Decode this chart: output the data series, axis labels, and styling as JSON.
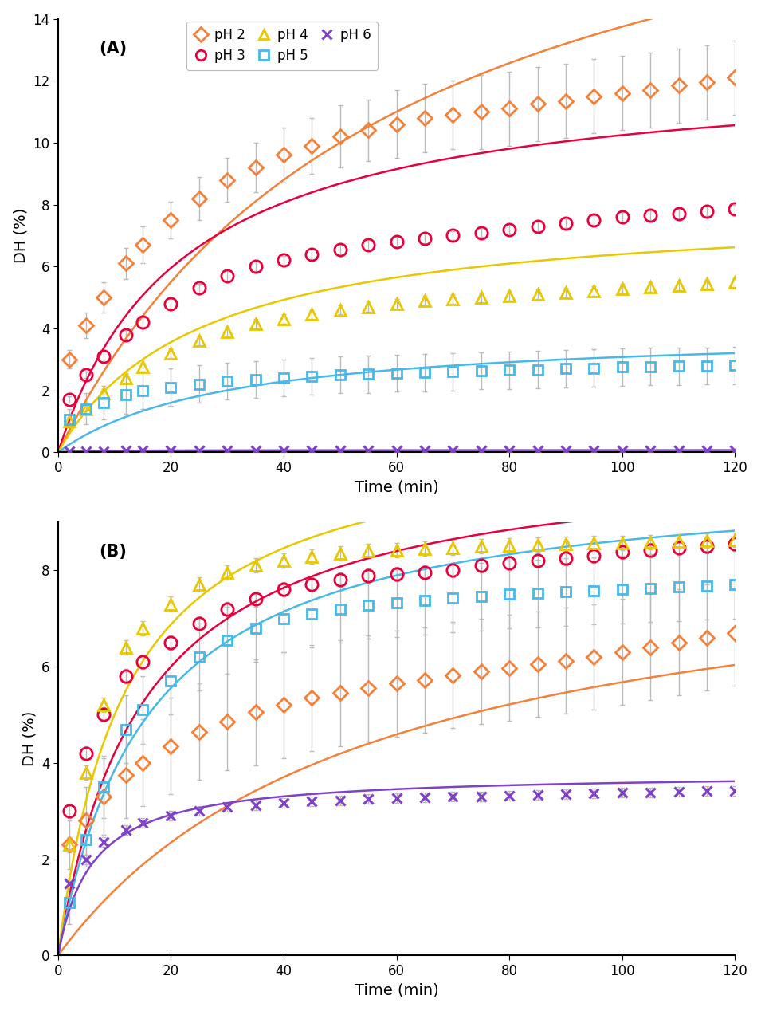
{
  "panel_A": {
    "label": "(A)",
    "ylim": [
      0,
      14
    ],
    "yticks": [
      0,
      2,
      4,
      6,
      8,
      10,
      12,
      14
    ],
    "series": [
      {
        "ph": "pH 2",
        "color": "#F4803A",
        "marker": "D",
        "markersize": 9,
        "fit_a": 22.0,
        "fit_b": 60.0,
        "data_x": [
          2,
          5,
          8,
          12,
          15,
          20,
          25,
          30,
          35,
          40,
          45,
          50,
          55,
          60,
          65,
          70,
          75,
          80,
          85,
          90,
          95,
          100,
          105,
          110,
          115,
          120
        ],
        "data_y": [
          3.0,
          4.1,
          5.0,
          6.1,
          6.7,
          7.5,
          8.2,
          8.8,
          9.2,
          9.6,
          9.9,
          10.2,
          10.4,
          10.6,
          10.8,
          10.9,
          11.0,
          11.1,
          11.25,
          11.35,
          11.5,
          11.6,
          11.7,
          11.85,
          11.95,
          12.1
        ],
        "err_y": [
          0.3,
          0.4,
          0.5,
          0.5,
          0.6,
          0.6,
          0.7,
          0.7,
          0.8,
          0.9,
          0.9,
          1.0,
          1.0,
          1.1,
          1.1,
          1.1,
          1.2,
          1.2,
          1.2,
          1.2,
          1.2,
          1.2,
          1.2,
          1.2,
          1.2,
          1.2
        ]
      },
      {
        "ph": "pH 3",
        "color": "#E8003C",
        "marker": "o",
        "markersize": 11,
        "fit_a": 12.5,
        "fit_b": 22.0,
        "data_x": [
          2,
          5,
          8,
          12,
          15,
          20,
          25,
          30,
          35,
          40,
          45,
          50,
          55,
          60,
          65,
          70,
          75,
          80,
          85,
          90,
          95,
          100,
          105,
          110,
          115,
          120
        ],
        "data_y": [
          1.7,
          2.5,
          3.1,
          3.8,
          4.2,
          4.8,
          5.3,
          5.7,
          6.0,
          6.2,
          6.4,
          6.55,
          6.7,
          6.8,
          6.9,
          7.0,
          7.1,
          7.2,
          7.3,
          7.4,
          7.5,
          7.6,
          7.65,
          7.7,
          7.78,
          7.85
        ],
        "err_y": [
          0.1,
          0.1,
          0.15,
          0.15,
          0.15,
          0.15,
          0.15,
          0.15,
          0.15,
          0.15,
          0.15,
          0.15,
          0.15,
          0.15,
          0.15,
          0.15,
          0.15,
          0.15,
          0.15,
          0.15,
          0.15,
          0.15,
          0.15,
          0.15,
          0.15,
          0.15
        ]
      },
      {
        "ph": "pH 4",
        "color": "#E8C800",
        "marker": "^",
        "markersize": 10,
        "fit_a": 8.0,
        "fit_b": 25.0,
        "data_x": [
          2,
          5,
          8,
          12,
          15,
          20,
          25,
          30,
          35,
          40,
          45,
          50,
          55,
          60,
          65,
          70,
          75,
          80,
          85,
          90,
          95,
          100,
          105,
          110,
          115,
          120
        ],
        "data_y": [
          1.0,
          1.4,
          1.9,
          2.4,
          2.75,
          3.2,
          3.6,
          3.9,
          4.15,
          4.3,
          4.45,
          4.6,
          4.7,
          4.8,
          4.9,
          4.95,
          5.0,
          5.05,
          5.1,
          5.15,
          5.2,
          5.28,
          5.33,
          5.38,
          5.43,
          5.48
        ],
        "err_y": [
          0.15,
          0.15,
          0.15,
          0.15,
          0.15,
          0.15,
          0.15,
          0.15,
          0.15,
          0.15,
          0.15,
          0.15,
          0.15,
          0.15,
          0.15,
          0.15,
          0.15,
          0.15,
          0.15,
          0.15,
          0.15,
          0.15,
          0.15,
          0.15,
          0.15,
          0.15
        ]
      },
      {
        "ph": "pH 5",
        "color": "#48B8E8",
        "marker": "s",
        "markersize": 9,
        "fit_a": 4.0,
        "fit_b": 30.0,
        "data_x": [
          2,
          5,
          8,
          12,
          15,
          20,
          25,
          30,
          35,
          40,
          45,
          50,
          55,
          60,
          65,
          70,
          75,
          80,
          85,
          90,
          95,
          100,
          105,
          110,
          115,
          120
        ],
        "data_y": [
          1.05,
          1.4,
          1.6,
          1.85,
          2.0,
          2.1,
          2.2,
          2.3,
          2.35,
          2.4,
          2.45,
          2.5,
          2.52,
          2.55,
          2.57,
          2.6,
          2.63,
          2.65,
          2.67,
          2.7,
          2.72,
          2.75,
          2.77,
          2.78,
          2.79,
          2.8
        ],
        "err_y": [
          0.35,
          0.5,
          0.55,
          0.6,
          0.6,
          0.6,
          0.6,
          0.6,
          0.6,
          0.6,
          0.6,
          0.6,
          0.6,
          0.6,
          0.6,
          0.6,
          0.6,
          0.6,
          0.6,
          0.6,
          0.6,
          0.6,
          0.6,
          0.6,
          0.6,
          0.6
        ]
      },
      {
        "ph": "pH 6",
        "color": "#8040C8",
        "marker": "x",
        "markersize": 9,
        "fit_a": 0.07,
        "fit_b": 5.0,
        "data_x": [
          2,
          5,
          8,
          12,
          15,
          20,
          25,
          30,
          35,
          40,
          45,
          50,
          55,
          60,
          65,
          70,
          75,
          80,
          85,
          90,
          95,
          100,
          105,
          110,
          115,
          120
        ],
        "data_y": [
          0.03,
          0.04,
          0.04,
          0.05,
          0.05,
          0.05,
          0.05,
          0.05,
          0.05,
          0.05,
          0.05,
          0.05,
          0.05,
          0.05,
          0.05,
          0.05,
          0.05,
          0.05,
          0.05,
          0.05,
          0.05,
          0.05,
          0.05,
          0.05,
          0.05,
          0.05
        ],
        "err_y": [
          0.005,
          0.005,
          0.005,
          0.005,
          0.005,
          0.005,
          0.005,
          0.005,
          0.005,
          0.005,
          0.005,
          0.005,
          0.005,
          0.005,
          0.005,
          0.005,
          0.005,
          0.005,
          0.005,
          0.005,
          0.005,
          0.005,
          0.005,
          0.005,
          0.005,
          0.005
        ]
      }
    ]
  },
  "panel_B": {
    "label": "(B)",
    "ylim": [
      0,
      9
    ],
    "yticks": [
      0,
      2,
      4,
      6,
      8
    ],
    "series": [
      {
        "ph": "pH 2",
        "color": "#F4803A",
        "marker": "D",
        "markersize": 9,
        "fit_a": 8.8,
        "fit_b": 55.0,
        "data_x": [
          2,
          5,
          8,
          12,
          15,
          20,
          25,
          30,
          35,
          40,
          45,
          50,
          55,
          60,
          65,
          70,
          75,
          80,
          85,
          90,
          95,
          100,
          105,
          110,
          115,
          120
        ],
        "data_y": [
          2.3,
          2.8,
          3.3,
          3.75,
          4.0,
          4.35,
          4.65,
          4.85,
          5.05,
          5.2,
          5.35,
          5.45,
          5.55,
          5.65,
          5.72,
          5.82,
          5.9,
          5.97,
          6.05,
          6.12,
          6.2,
          6.3,
          6.4,
          6.5,
          6.6,
          6.7
        ],
        "err_y": [
          0.5,
          0.7,
          0.8,
          0.9,
          0.9,
          1.0,
          1.0,
          1.0,
          1.1,
          1.1,
          1.1,
          1.1,
          1.1,
          1.1,
          1.1,
          1.1,
          1.1,
          1.1,
          1.1,
          1.1,
          1.1,
          1.1,
          1.1,
          1.1,
          1.1,
          1.1
        ]
      },
      {
        "ph": "pH 3",
        "color": "#E8003C",
        "marker": "o",
        "markersize": 11,
        "fit_a": 10.5,
        "fit_b": 15.0,
        "data_x": [
          2,
          5,
          8,
          12,
          15,
          20,
          25,
          30,
          35,
          40,
          45,
          50,
          55,
          60,
          65,
          70,
          75,
          80,
          85,
          90,
          95,
          100,
          105,
          110,
          115,
          120
        ],
        "data_y": [
          3.0,
          4.2,
          5.0,
          5.8,
          6.1,
          6.5,
          6.9,
          7.2,
          7.4,
          7.6,
          7.7,
          7.8,
          7.88,
          7.92,
          7.95,
          8.0,
          8.1,
          8.15,
          8.2,
          8.25,
          8.3,
          8.38,
          8.42,
          8.47,
          8.5,
          8.55
        ],
        "err_y": [
          0.15,
          0.15,
          0.15,
          0.15,
          0.15,
          0.15,
          0.15,
          0.15,
          0.15,
          0.15,
          0.15,
          0.15,
          0.15,
          0.15,
          0.15,
          0.15,
          0.15,
          0.15,
          0.15,
          0.15,
          0.15,
          0.15,
          0.15,
          0.15,
          0.15,
          0.15
        ]
      },
      {
        "ph": "pH 4",
        "color": "#E8C800",
        "marker": "^",
        "markersize": 10,
        "fit_a": 11.0,
        "fit_b": 12.0,
        "data_x": [
          2,
          5,
          8,
          12,
          15,
          20,
          25,
          30,
          35,
          40,
          45,
          50,
          55,
          60,
          65,
          70,
          75,
          80,
          85,
          90,
          95,
          100,
          105,
          110,
          115,
          120
        ],
        "data_y": [
          2.3,
          3.8,
          5.2,
          6.4,
          6.8,
          7.3,
          7.7,
          7.95,
          8.1,
          8.2,
          8.28,
          8.35,
          8.4,
          8.42,
          8.45,
          8.47,
          8.5,
          8.52,
          8.53,
          8.55,
          8.56,
          8.57,
          8.58,
          8.6,
          8.62,
          8.63
        ],
        "err_y": [
          0.15,
          0.15,
          0.15,
          0.15,
          0.15,
          0.15,
          0.15,
          0.15,
          0.15,
          0.15,
          0.15,
          0.15,
          0.15,
          0.15,
          0.15,
          0.15,
          0.15,
          0.15,
          0.15,
          0.15,
          0.15,
          0.15,
          0.15,
          0.15,
          0.15,
          0.15
        ]
      },
      {
        "ph": "pH 5",
        "color": "#48B8E8",
        "marker": "s",
        "markersize": 9,
        "fit_a": 10.0,
        "fit_b": 16.0,
        "data_x": [
          2,
          5,
          8,
          12,
          15,
          20,
          25,
          30,
          35,
          40,
          45,
          50,
          55,
          60,
          65,
          70,
          75,
          80,
          85,
          90,
          95,
          100,
          105,
          110,
          115,
          120
        ],
        "data_y": [
          1.1,
          2.4,
          3.5,
          4.7,
          5.1,
          5.7,
          6.2,
          6.55,
          6.8,
          7.0,
          7.1,
          7.2,
          7.28,
          7.32,
          7.37,
          7.42,
          7.45,
          7.5,
          7.52,
          7.55,
          7.57,
          7.6,
          7.63,
          7.65,
          7.68,
          7.7
        ],
        "err_y": [
          0.45,
          0.55,
          0.65,
          0.7,
          0.7,
          0.7,
          0.7,
          0.7,
          0.7,
          0.7,
          0.7,
          0.7,
          0.7,
          0.7,
          0.7,
          0.7,
          0.7,
          0.7,
          0.7,
          0.7,
          0.7,
          0.7,
          0.7,
          0.7,
          0.7,
          0.7
        ]
      },
      {
        "ph": "pH 6",
        "color": "#8040C8",
        "marker": "x",
        "markersize": 9,
        "fit_a": 3.8,
        "fit_b": 6.0,
        "data_x": [
          2,
          5,
          8,
          12,
          15,
          20,
          25,
          30,
          35,
          40,
          45,
          50,
          55,
          60,
          65,
          70,
          75,
          80,
          85,
          90,
          95,
          100,
          105,
          110,
          115,
          120
        ],
        "data_y": [
          1.5,
          2.0,
          2.35,
          2.6,
          2.75,
          2.9,
          3.0,
          3.08,
          3.12,
          3.17,
          3.2,
          3.22,
          3.25,
          3.27,
          3.28,
          3.3,
          3.3,
          3.32,
          3.33,
          3.35,
          3.36,
          3.38,
          3.39,
          3.4,
          3.41,
          3.42
        ],
        "err_y": [
          0.1,
          0.1,
          0.1,
          0.1,
          0.1,
          0.1,
          0.1,
          0.1,
          0.1,
          0.1,
          0.1,
          0.1,
          0.1,
          0.1,
          0.1,
          0.1,
          0.1,
          0.1,
          0.1,
          0.1,
          0.1,
          0.1,
          0.1,
          0.1,
          0.1,
          0.1
        ]
      }
    ]
  },
  "legend_phs": [
    "pH 2",
    "pH 3",
    "pH 4",
    "pH 5",
    "pH 6"
  ],
  "legend_colors": [
    "#F4803A",
    "#E8003C",
    "#E8C800",
    "#48B8E8",
    "#8040C8"
  ],
  "legend_markers": [
    "D",
    "o",
    "^",
    "s",
    "x"
  ],
  "xlabel": "Time (min)",
  "ylabel": "DH (%)",
  "xlim": [
    0,
    120
  ],
  "xticks": [
    0,
    20,
    40,
    60,
    80,
    100,
    120
  ],
  "bg_color": "#FFFFFF",
  "errorbar_color": "#BBBBBB",
  "linewidth": 1.8
}
